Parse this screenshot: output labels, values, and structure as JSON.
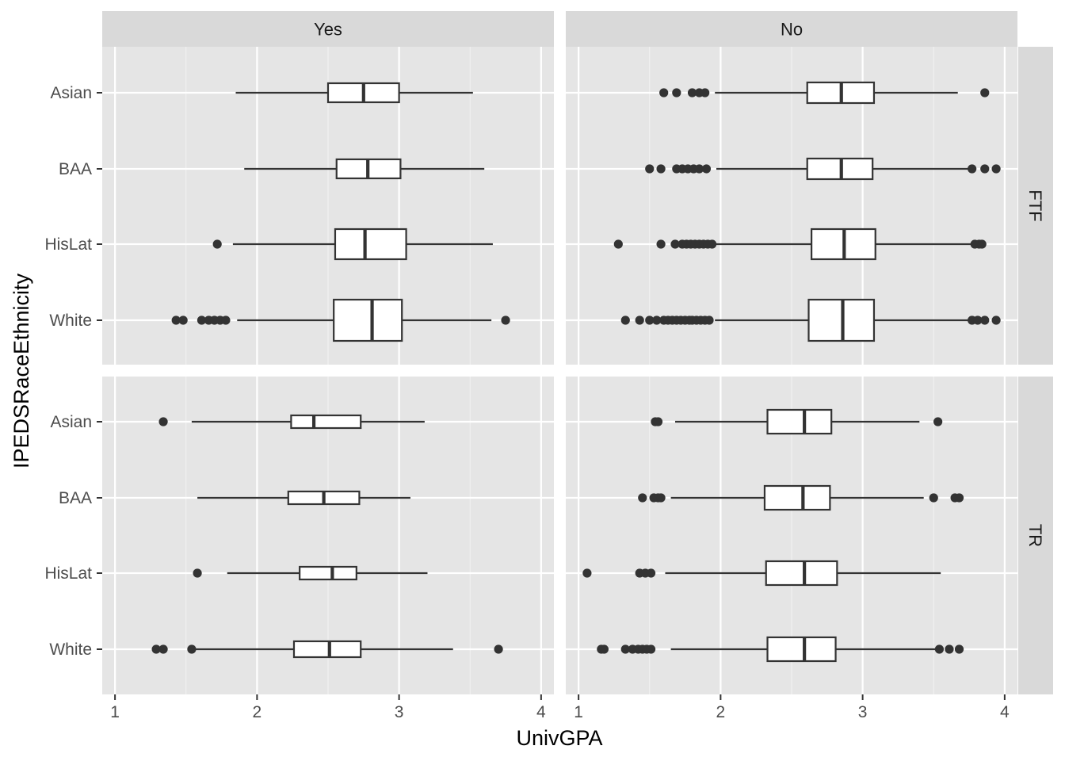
{
  "chart_data": {
    "type": "boxplot",
    "orientation": "horizontal",
    "xlabel": "UnivGPA",
    "ylabel": "IPEDSRaceEthnicity",
    "x_ticks": [
      1,
      2,
      3,
      4
    ],
    "xlim": [
      0.91,
      4.09
    ],
    "categories": [
      "White",
      "HisLat",
      "BAA",
      "Asian"
    ],
    "facet_columns": [
      "Yes",
      "No"
    ],
    "facet_rows": [
      "FTF",
      "TR"
    ],
    "grid": true,
    "panels": [
      {
        "column": "Yes",
        "row": "FTF",
        "boxes": [
          {
            "category": "Asian",
            "whisker_low": 1.85,
            "q1": 2.5,
            "median": 2.75,
            "q3": 3.0,
            "whisker_high": 3.52,
            "outliers": []
          },
          {
            "category": "BAA",
            "whisker_low": 1.91,
            "q1": 2.56,
            "median": 2.78,
            "q3": 3.01,
            "whisker_high": 3.6,
            "outliers": []
          },
          {
            "category": "HisLat",
            "whisker_low": 1.83,
            "q1": 2.55,
            "median": 2.76,
            "q3": 3.05,
            "whisker_high": 3.66,
            "outliers": [
              1.72
            ]
          },
          {
            "category": "White",
            "whisker_low": 1.86,
            "q1": 2.54,
            "median": 2.81,
            "q3": 3.02,
            "whisker_high": 3.65,
            "outliers": [
              1.43,
              1.48,
              1.61,
              1.66,
              1.7,
              1.74,
              1.78,
              3.75
            ]
          }
        ]
      },
      {
        "column": "No",
        "row": "FTF",
        "boxes": [
          {
            "category": "Asian",
            "whisker_low": 1.96,
            "q1": 2.61,
            "median": 2.85,
            "q3": 3.08,
            "whisker_high": 3.67,
            "outliers": [
              1.6,
              1.69,
              1.8,
              1.85,
              1.89,
              3.86
            ]
          },
          {
            "category": "BAA",
            "whisker_low": 1.97,
            "q1": 2.61,
            "median": 2.85,
            "q3": 3.07,
            "whisker_high": 3.75,
            "outliers": [
              1.5,
              1.58,
              1.69,
              1.73,
              1.77,
              1.81,
              1.85,
              1.9,
              3.77,
              3.86,
              3.94
            ]
          },
          {
            "category": "HisLat",
            "whisker_low": 1.96,
            "q1": 2.64,
            "median": 2.87,
            "q3": 3.09,
            "whisker_high": 3.78,
            "outliers": [
              1.28,
              1.58,
              1.68,
              1.73,
              1.76,
              1.79,
              1.82,
              1.85,
              1.88,
              1.91,
              1.94,
              3.79,
              3.82,
              3.84
            ]
          },
          {
            "category": "White",
            "whisker_low": 1.96,
            "q1": 2.62,
            "median": 2.86,
            "q3": 3.08,
            "whisker_high": 3.76,
            "outliers": [
              1.33,
              1.43,
              1.5,
              1.55,
              1.6,
              1.63,
              1.66,
              1.69,
              1.72,
              1.75,
              1.78,
              1.8,
              1.83,
              1.86,
              1.89,
              1.92,
              3.77,
              3.81,
              3.86,
              3.94
            ]
          }
        ]
      },
      {
        "column": "Yes",
        "row": "TR",
        "boxes": [
          {
            "category": "Asian",
            "whisker_low": 1.54,
            "q1": 2.24,
            "median": 2.4,
            "q3": 2.73,
            "whisker_high": 3.18,
            "outliers": [
              1.34
            ]
          },
          {
            "category": "BAA",
            "whisker_low": 1.58,
            "q1": 2.22,
            "median": 2.47,
            "q3": 2.72,
            "whisker_high": 3.08,
            "outliers": []
          },
          {
            "category": "HisLat",
            "whisker_low": 1.79,
            "q1": 2.3,
            "median": 2.53,
            "q3": 2.7,
            "whisker_high": 3.2,
            "outliers": [
              1.58
            ]
          },
          {
            "category": "White",
            "whisker_low": 1.55,
            "q1": 2.26,
            "median": 2.51,
            "q3": 2.73,
            "whisker_high": 3.38,
            "outliers": [
              1.29,
              1.34,
              1.54,
              3.7
            ]
          }
        ]
      },
      {
        "column": "No",
        "row": "TR",
        "boxes": [
          {
            "category": "Asian",
            "whisker_low": 1.68,
            "q1": 2.33,
            "median": 2.59,
            "q3": 2.78,
            "whisker_high": 3.4,
            "outliers": [
              1.54,
              1.56,
              3.53
            ]
          },
          {
            "category": "BAA",
            "whisker_low": 1.65,
            "q1": 2.31,
            "median": 2.58,
            "q3": 2.77,
            "whisker_high": 3.43,
            "outliers": [
              1.45,
              1.53,
              1.56,
              1.58,
              3.5,
              3.65,
              3.68
            ]
          },
          {
            "category": "HisLat",
            "whisker_low": 1.61,
            "q1": 2.32,
            "median": 2.59,
            "q3": 2.82,
            "whisker_high": 3.55,
            "outliers": [
              1.06,
              1.43,
              1.47,
              1.51
            ]
          },
          {
            "category": "White",
            "whisker_low": 1.65,
            "q1": 2.33,
            "median": 2.59,
            "q3": 2.81,
            "whisker_high": 3.54,
            "outliers": [
              1.16,
              1.18,
              1.33,
              1.38,
              1.42,
              1.45,
              1.48,
              1.51,
              3.54,
              3.61,
              3.68
            ]
          }
        ]
      }
    ]
  }
}
